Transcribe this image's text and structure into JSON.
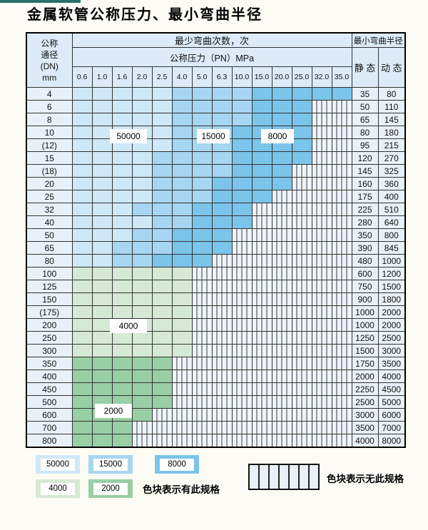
{
  "title": "金属软管公称压力、最小弯曲半径",
  "table": {
    "corner_lines": [
      "公称",
      "通径",
      "(DN)",
      "mm"
    ],
    "bend_cycles_header": "最少弯曲次数，次",
    "pressure_header": "公称压力（PN）MPa",
    "radius_header": "最小弯曲半径",
    "static_header": "静 态",
    "dynamic_header": "动 态",
    "pressures": [
      "0.6",
      "1.0",
      "1.6",
      "2.0",
      "2.5",
      "4.0",
      "5.0",
      "6.3",
      "10.0",
      "15.0",
      "20.0",
      "25.0",
      "32.0",
      "35.0"
    ],
    "cell_code_meaning": {
      "L": "50000次",
      "M": "15000次",
      "D": "8000次",
      "G": "4000次",
      "g": "2000次",
      "H": "无此规格"
    },
    "rows": [
      {
        "dn": "4",
        "cells": "LLLLLMMMMDDDDD",
        "static": "35",
        "dynamic": "80"
      },
      {
        "dn": "6",
        "cells": "LLLLLMMMMDDDHH",
        "static": "50",
        "dynamic": "110"
      },
      {
        "dn": "8",
        "cells": "LLLLLMMMMDDDHH",
        "static": "65",
        "dynamic": "145"
      },
      {
        "dn": "10",
        "cells": "LLLLLMMMDDDDHH",
        "static": "80",
        "dynamic": "180"
      },
      {
        "dn": "(12)",
        "cells": "LLLLLMMMDDDDHH",
        "static": "95",
        "dynamic": "215"
      },
      {
        "dn": "15",
        "cells": "LLLLMMMMDDDDHH",
        "static": "120",
        "dynamic": "270"
      },
      {
        "dn": "(18)",
        "cells": "LLLLMMMMDDDHHH",
        "static": "145",
        "dynamic": "325"
      },
      {
        "dn": "20",
        "cells": "LLLLMMMDDDDHHH",
        "static": "160",
        "dynamic": "360"
      },
      {
        "dn": "25",
        "cells": "LLLLMMMDDDHHHH",
        "static": "175",
        "dynamic": "400"
      },
      {
        "dn": "32",
        "cells": "LLLMMMDDDHHHHH",
        "static": "225",
        "dynamic": "510"
      },
      {
        "dn": "40",
        "cells": "LLLLMMDDDHHHHH",
        "static": "280",
        "dynamic": "640"
      },
      {
        "dn": "50",
        "cells": "LLLMMDDDHHHHHH",
        "static": "350",
        "dynamic": "800"
      },
      {
        "dn": "65",
        "cells": "LLMMMDDDHHHHHH",
        "static": "390",
        "dynamic": "845"
      },
      {
        "dn": "80",
        "cells": "LLMMDDDHHHHHHH",
        "static": "480",
        "dynamic": "1000"
      },
      {
        "dn": "100",
        "cells": "GGGGGGHHHHHHHH",
        "static": "600",
        "dynamic": "1200"
      },
      {
        "dn": "125",
        "cells": "GGGGGGHHHHHHHH",
        "static": "750",
        "dynamic": "1500"
      },
      {
        "dn": "150",
        "cells": "GGGGGGHHHHHHHH",
        "static": "900",
        "dynamic": "1800"
      },
      {
        "dn": "(175)",
        "cells": "GGGGGGHHHHHHHH",
        "static": "1000",
        "dynamic": "2000"
      },
      {
        "dn": "200",
        "cells": "GGGGGGHHHHHHHH",
        "static": "1000",
        "dynamic": "2000"
      },
      {
        "dn": "250",
        "cells": "GGGGGGHHHHHHHH",
        "static": "1250",
        "dynamic": "2500"
      },
      {
        "dn": "300",
        "cells": "GGGGGGHHHHHHHH",
        "static": "1500",
        "dynamic": "3000"
      },
      {
        "dn": "350",
        "cells": "gggggHHHHHHHHH",
        "static": "1750",
        "dynamic": "3500"
      },
      {
        "dn": "400",
        "cells": "gggggHHHHHHHHH",
        "static": "2000",
        "dynamic": "4000"
      },
      {
        "dn": "450",
        "cells": "gggggHHHHHHHHH",
        "static": "2250",
        "dynamic": "4500"
      },
      {
        "dn": "500",
        "cells": "gggggHHHHHHHHH",
        "static": "2500",
        "dynamic": "5000"
      },
      {
        "dn": "600",
        "cells": "ggggHHHHHHHHHH",
        "static": "3000",
        "dynamic": "6000"
      },
      {
        "dn": "700",
        "cells": "gggHHHHHHHHHHH",
        "static": "3500",
        "dynamic": "7000"
      },
      {
        "dn": "800",
        "cells": "gggHHHHHHHHHHH",
        "static": "4000",
        "dynamic": "8000"
      }
    ]
  },
  "floating_labels": {
    "l50000": "50000",
    "l15000": "15000",
    "l8000": "8000",
    "l4000": "4000",
    "l2000": "2000"
  },
  "legend": {
    "blue_items": [
      {
        "label": "50000",
        "key": "c-50k"
      },
      {
        "label": "15000",
        "key": "c-15k"
      },
      {
        "label": "8000",
        "key": "c-8k"
      }
    ],
    "green_items": [
      {
        "label": "4000",
        "key": "c-4k"
      },
      {
        "label": "2000",
        "key": "c-2k"
      }
    ],
    "has_spec_note": "色块表示有此规格",
    "no_spec_note": "色块表示无此规格"
  },
  "colors": {
    "c-50k": "#cfe8f8",
    "c-15k": "#a6d6f1",
    "c-8k": "#7bc4ea",
    "c-4k": "#d6e9d4",
    "c-2k": "#98cfa4",
    "accent": "#2b6f6b"
  }
}
